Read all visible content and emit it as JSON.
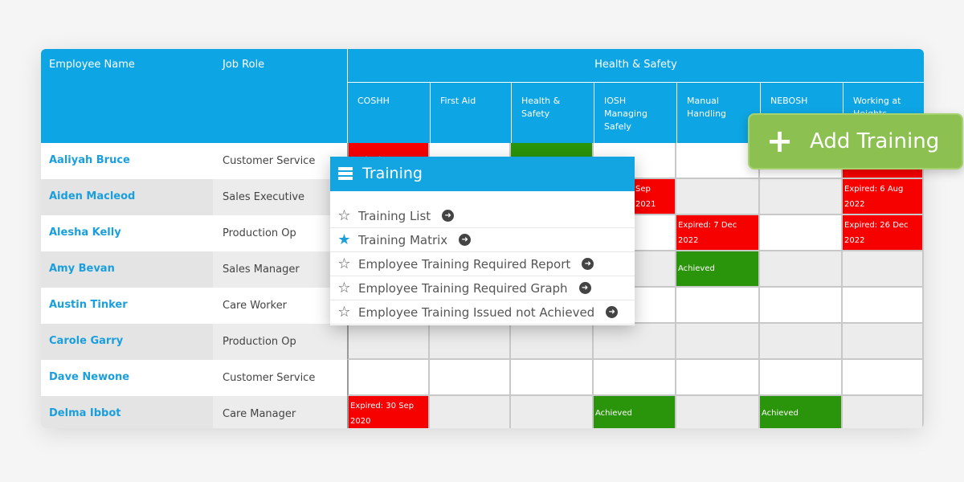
{
  "header": {
    "employee_name": "Employee Name",
    "job_role": "Job Role",
    "group": "Health & Safety",
    "courses": [
      "COSHH",
      "First Aid",
      "Health & Safety",
      "IOSH Managing Safely",
      "Manual Handling",
      "NEBOSH",
      "Working at Heights"
    ]
  },
  "rows": [
    {
      "name": "Aaliyah Bruce",
      "role": "Customer Service",
      "cells": [
        "Expired: 16 Aug",
        "",
        "",
        "",
        "",
        "",
        ""
      ]
    },
    {
      "name": "Aiden Macleod",
      "role": "Sales Executive",
      "cells": [
        "",
        "",
        "",
        "Sep 2021",
        "",
        "",
        "Expired: 6 Aug 2022"
      ]
    },
    {
      "name": "Alesha Kelly",
      "role": "Production Op",
      "cells": [
        "",
        "",
        "",
        "",
        "Expired: 7 Dec 2022",
        "",
        "Expired: 26 Dec 2022"
      ]
    },
    {
      "name": "Amy Bevan",
      "role": "Sales Manager",
      "cells": [
        "",
        "",
        "",
        "",
        "Achieved",
        "",
        ""
      ]
    },
    {
      "name": "Austin Tinker",
      "role": "Care Worker",
      "cells": [
        "",
        "",
        "",
        "",
        "",
        "",
        ""
      ]
    },
    {
      "name": "Carole Garry",
      "role": "Production Op",
      "cells": [
        "",
        "",
        "",
        "",
        "",
        "",
        ""
      ]
    },
    {
      "name": "Dave Newone",
      "role": "Customer Service",
      "cells": [
        "",
        "",
        "",
        "",
        "",
        "",
        ""
      ]
    },
    {
      "name": "Delma Ibbot",
      "role": "Care Manager",
      "cells": [
        "Expired: 30 Sep 2020",
        "",
        "",
        "Achieved",
        "",
        "Achieved",
        ""
      ]
    }
  ],
  "status": [
    [
      "red",
      "",
      "green",
      "",
      "",
      "",
      "red"
    ],
    [
      "",
      "",
      "",
      "red",
      "",
      "",
      "red"
    ],
    [
      "",
      "",
      "",
      "",
      "red",
      "",
      "red"
    ],
    [
      "",
      "",
      "",
      "",
      "green",
      "",
      ""
    ],
    [
      "",
      "",
      "",
      "",
      "",
      "",
      ""
    ],
    [
      "",
      "",
      "",
      "",
      "",
      "",
      ""
    ],
    [
      "",
      "",
      "",
      "",
      "",
      "",
      ""
    ],
    [
      "red",
      "",
      "",
      "green",
      "",
      "green",
      ""
    ]
  ],
  "colors": {
    "header": "#0ea5e4",
    "expired": "#f70000",
    "achieved": "#2a940a",
    "add_button": "#8cc152"
  },
  "popup": {
    "title": "Training",
    "icon": "list-icon",
    "items": [
      {
        "label": "Training List",
        "starred": false
      },
      {
        "label": "Training Matrix",
        "starred": true
      },
      {
        "label": "Employee Training Required Report",
        "starred": false
      },
      {
        "label": "Employee Training Required Graph",
        "starred": false
      },
      {
        "label": "Employee Training Issued not Achieved",
        "starred": false
      }
    ]
  },
  "add_button": {
    "label": "Add Training",
    "icon": "plus-icon"
  }
}
